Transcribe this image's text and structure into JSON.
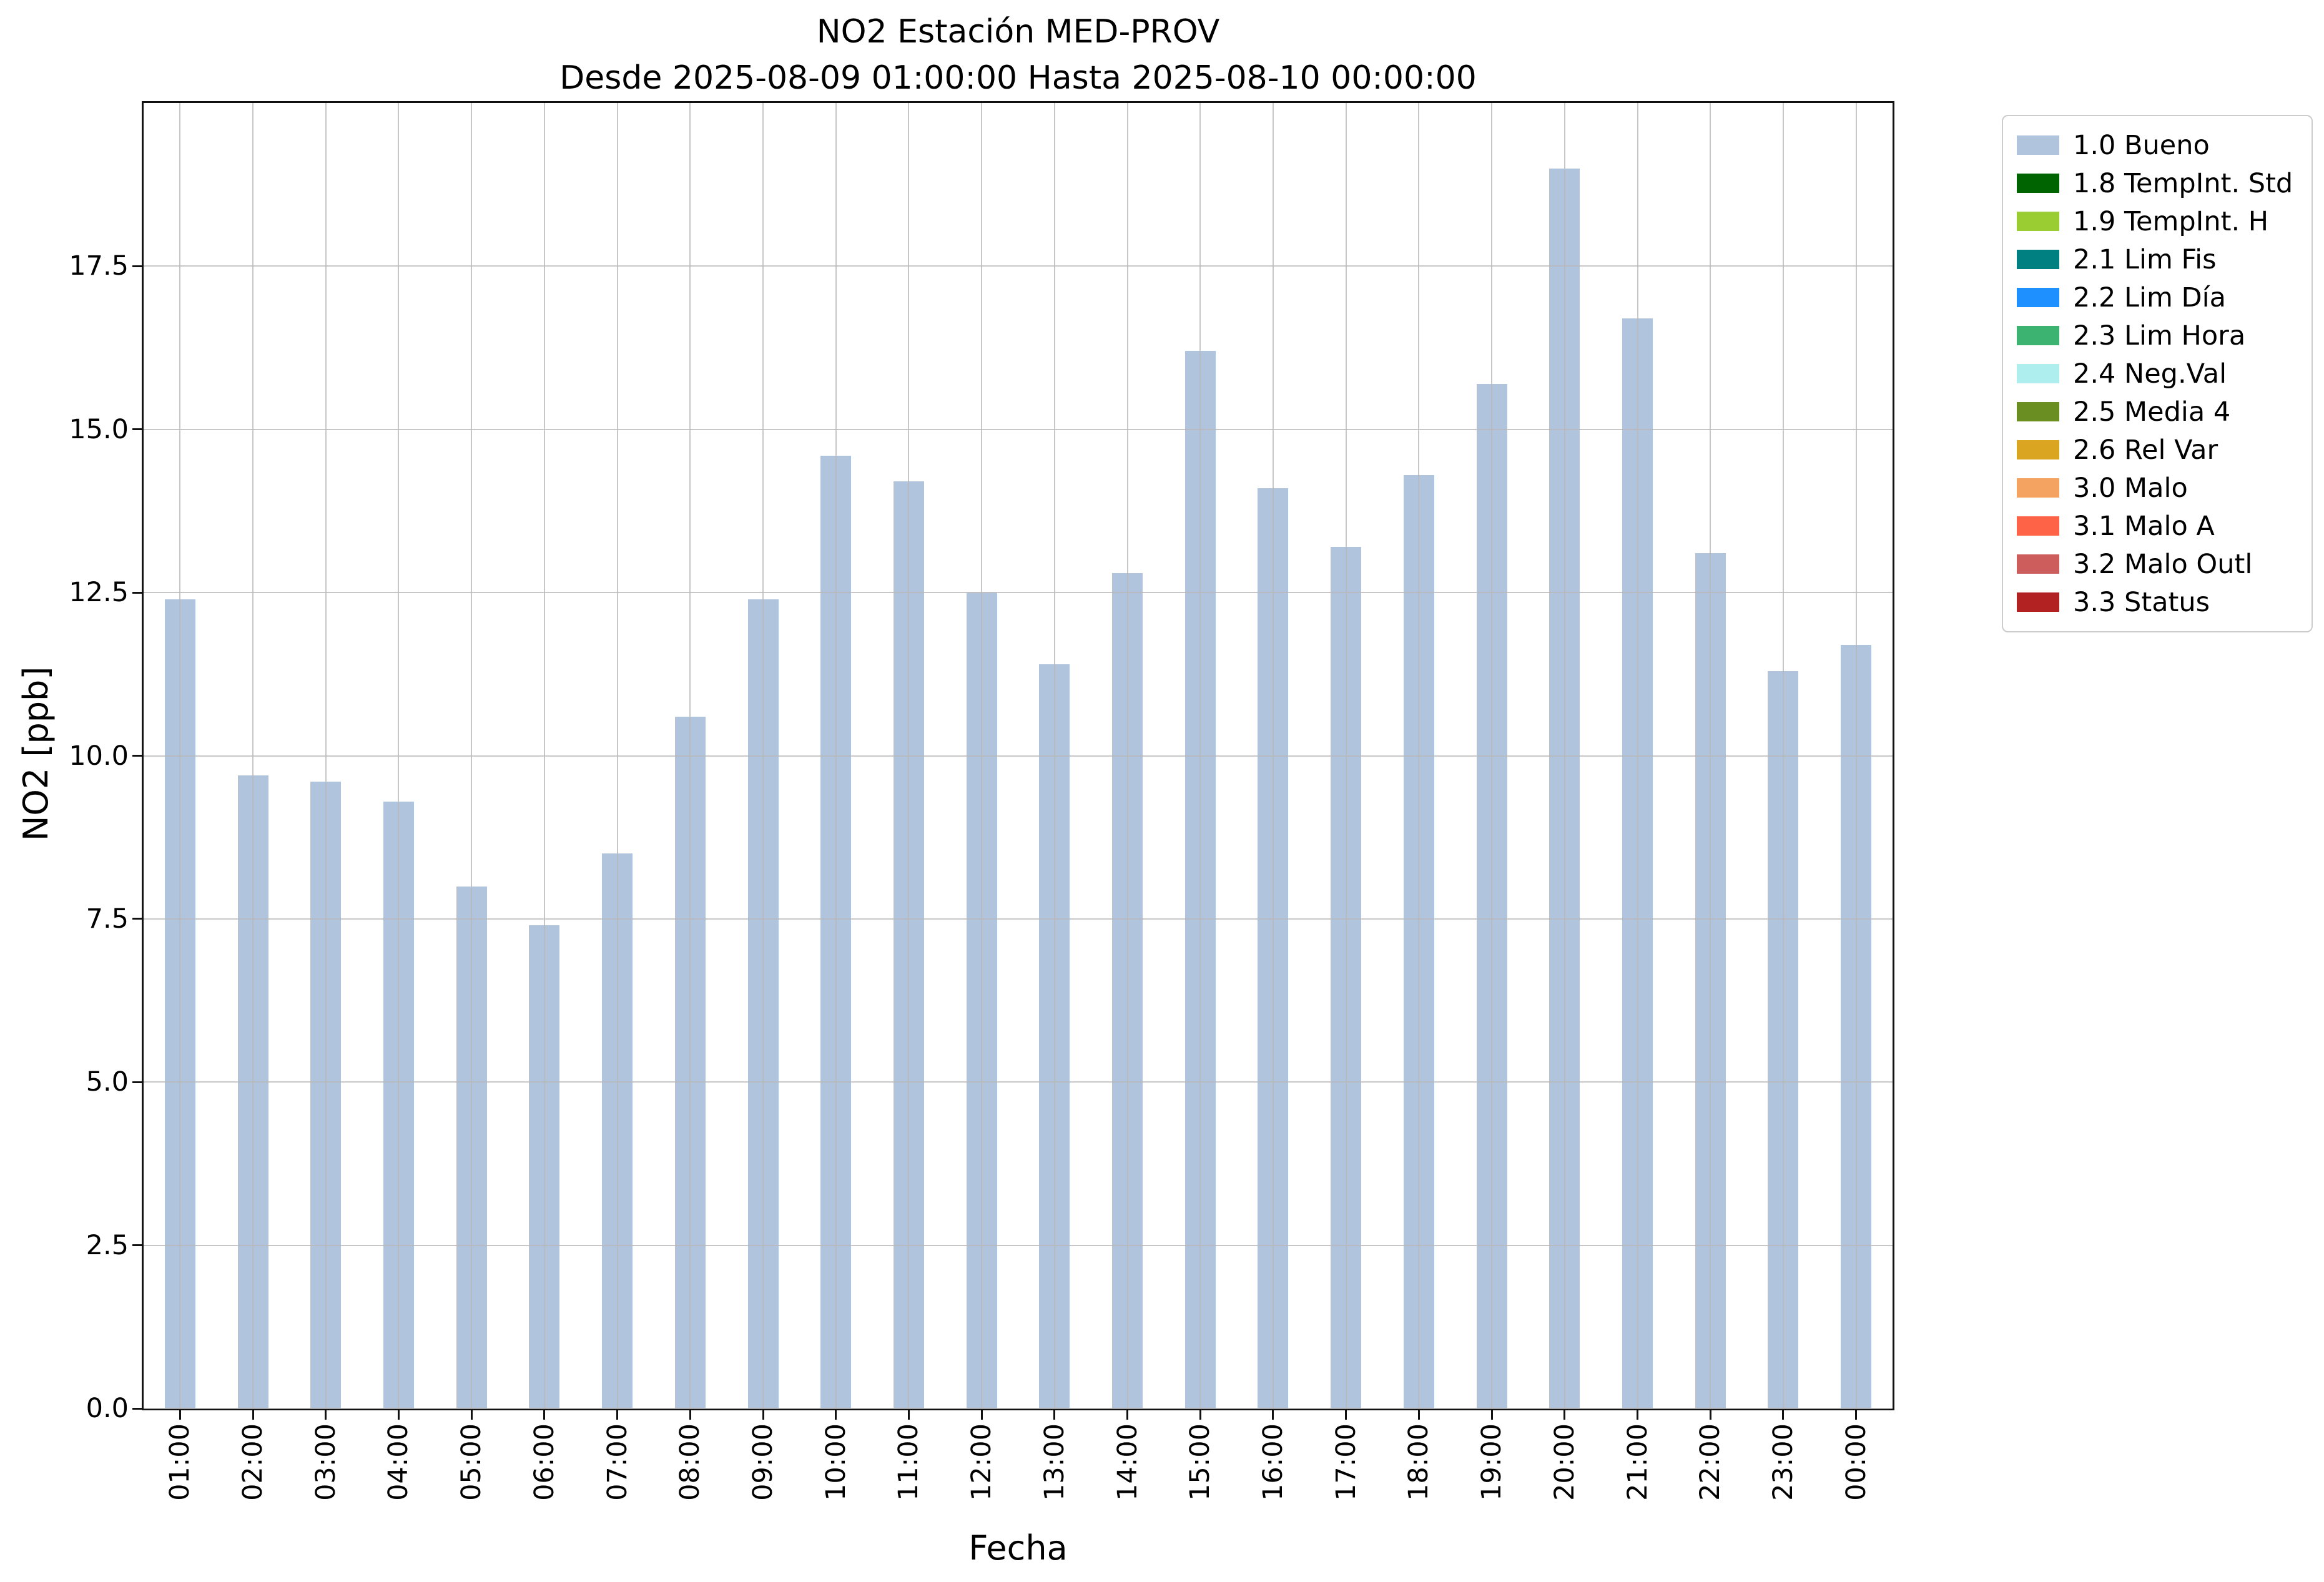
{
  "chart_data": {
    "type": "bar",
    "title": "NO2 Estación MED-PROV",
    "subtitle": "Desde 2025-08-09 01:00:00 Hasta 2025-08-10 00:00:00",
    "xlabel": "Fecha",
    "ylabel": "NO2 [ppb]",
    "categories": [
      "01:00",
      "02:00",
      "03:00",
      "04:00",
      "05:00",
      "06:00",
      "07:00",
      "08:00",
      "09:00",
      "10:00",
      "11:00",
      "12:00",
      "13:00",
      "14:00",
      "15:00",
      "16:00",
      "17:00",
      "18:00",
      "19:00",
      "20:00",
      "21:00",
      "22:00",
      "23:00",
      "00:00"
    ],
    "values": [
      12.4,
      9.7,
      9.6,
      9.3,
      8.0,
      7.4,
      8.5,
      10.6,
      12.4,
      14.6,
      14.2,
      12.5,
      11.4,
      12.8,
      16.2,
      14.1,
      13.2,
      14.3,
      15.7,
      19.0,
      16.7,
      13.1,
      11.3,
      11.7
    ],
    "ylim": [
      0,
      20
    ],
    "yticks": [
      0,
      2.5,
      5,
      7.5,
      10,
      12.5,
      15,
      17.5
    ],
    "bar_color": "#b0c4de",
    "grid": true,
    "grid_color": "#b9b9b9",
    "legend_position": "outside-top-right",
    "legend": [
      {
        "label": "1.0 Bueno",
        "color": "#b0c4de"
      },
      {
        "label": "1.8 TempInt. Std",
        "color": "#006400"
      },
      {
        "label": "1.9 TempInt. H",
        "color": "#9acd32"
      },
      {
        "label": "2.1 Lim Fis",
        "color": "#008080"
      },
      {
        "label": "2.2 Lim Día",
        "color": "#1e90ff"
      },
      {
        "label": "2.3 Lim Hora",
        "color": "#3cb371"
      },
      {
        "label": "2.4 Neg.Val",
        "color": "#afeeee"
      },
      {
        "label": "2.5 Media 4",
        "color": "#6b8e23"
      },
      {
        "label": "2.6 Rel Var",
        "color": "#daa520"
      },
      {
        "label": "3.0 Malo",
        "color": "#f4a460"
      },
      {
        "label": "3.1 Malo A",
        "color": "#ff6347"
      },
      {
        "label": "3.2 Malo Outl",
        "color": "#cd5c5c"
      },
      {
        "label": "3.3 Status",
        "color": "#b22222"
      }
    ]
  }
}
